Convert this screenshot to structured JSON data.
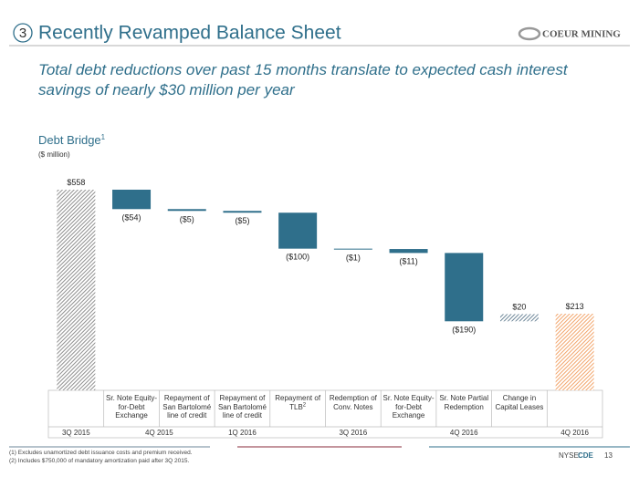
{
  "header": {
    "number": "3",
    "title": "Recently Revamped Balance Sheet",
    "logo": "COEUR MINING"
  },
  "headline": "Total debt reductions over past 15 months translate to expected cash interest savings of nearly $30 million per year",
  "chart_data": {
    "type": "waterfall",
    "title": "Debt Bridge",
    "title_superscript": "1",
    "subtitle": "($ million)",
    "categories": [
      null,
      "Sr. Note Equity-for-Debt Exchange",
      "Repayment of San Bartolomé line of credit",
      "Repayment of San Bartolomé line of credit",
      "Repayment of TLB",
      "Redemption of Conv. Notes",
      "Sr. Note Equity-for-Debt Exchange",
      "Sr. Note Partial Redemption",
      "Change in Capital Leases",
      null
    ],
    "category_superscripts": [
      null,
      null,
      null,
      null,
      "2",
      null,
      null,
      null,
      null,
      null
    ],
    "measures": [
      "total",
      "relative",
      "relative",
      "relative",
      "relative",
      "relative",
      "relative",
      "relative",
      "relative",
      "total"
    ],
    "values": [
      558,
      -54,
      -5,
      -5,
      -100,
      -1,
      -11,
      -190,
      20,
      213
    ],
    "value_labels": [
      "$558",
      "($54)",
      "($5)",
      "($5)",
      "($100)",
      "($1)",
      "($11)",
      "($190)",
      "$20",
      "$213"
    ],
    "colors": [
      "#8f8f8f",
      "#2f6f8b",
      "#2f6f8b",
      "#2f6f8b",
      "#2f6f8b",
      "#2f6f8b",
      "#2f6f8b",
      "#2f6f8b",
      "#6e8799",
      "#f2a46a"
    ],
    "periods": [
      {
        "label": "3Q 2015",
        "columns": [
          0
        ]
      },
      {
        "label": "4Q 2015",
        "columns": [
          1,
          2
        ]
      },
      {
        "label": "1Q 2016",
        "columns": [
          3
        ]
      },
      {
        "label": "3Q 2016",
        "columns": [
          4,
          5,
          6
        ]
      },
      {
        "label": "4Q 2016",
        "columns": [
          7
        ]
      },
      {
        "label": "4Q 2016",
        "columns": [
          9
        ]
      }
    ]
  },
  "footnotes": [
    "(1) Excludes unamortized debt issuance costs and premium received.",
    "(2) Includes $750,000 of mandatory amortization paid after 3Q 2015."
  ],
  "footer": {
    "exchange": "NYSE:",
    "ticker": "CDE",
    "page": "13"
  }
}
